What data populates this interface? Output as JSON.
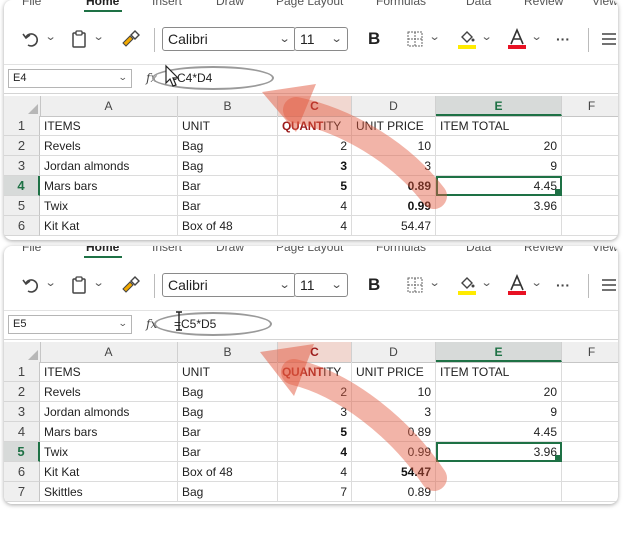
{
  "panels": [
    {
      "ribbon_tabs": [
        "File",
        "Home",
        "Insert",
        "Draw",
        "Page Layout",
        "Formulas",
        "Data",
        "Review",
        "View"
      ],
      "font_name": "Calibri",
      "font_size": "11",
      "bold_label": "B",
      "more_label": "···",
      "name_box": "E4",
      "fx_label": "fx",
      "formula": "=C4*D4",
      "columns": [
        "A",
        "B",
        "C",
        "D",
        "E",
        "F"
      ],
      "rows": [
        {
          "num": "1",
          "a": "ITEMS",
          "b": "UNIT",
          "c": "QUANTITY",
          "d": "UNIT PRICE",
          "e": "ITEM TOTAL"
        },
        {
          "num": "2",
          "a": "Revels",
          "b": "Bag",
          "c": "2",
          "d": "10",
          "e": "20"
        },
        {
          "num": "3",
          "a": "Jordan almonds",
          "b": "Bag",
          "c": "3",
          "d": "3",
          "e": "9"
        },
        {
          "num": "4",
          "a": "Mars bars",
          "b": "Bar",
          "c": "5",
          "d": "0.89",
          "e": "4.45"
        },
        {
          "num": "5",
          "a": "Twix",
          "b": "Bar",
          "c": "4",
          "d": "0.99",
          "e": "3.96"
        },
        {
          "num": "6",
          "a": "Kit Kat",
          "b": "Box of 48",
          "c": "4",
          "d": "54.47",
          "e": ""
        }
      ]
    },
    {
      "ribbon_tabs": [
        "File",
        "Home",
        "Insert",
        "Draw",
        "Page Layout",
        "Formulas",
        "Data",
        "Review",
        "View"
      ],
      "font_name": "Calibri",
      "font_size": "11",
      "bold_label": "B",
      "more_label": "···",
      "name_box": "E5",
      "fx_label": "fx",
      "formula": "=C5*D5",
      "columns": [
        "A",
        "B",
        "C",
        "D",
        "E",
        "F"
      ],
      "rows": [
        {
          "num": "1",
          "a": "ITEMS",
          "b": "UNIT",
          "c": "QUANTITY",
          "d": "UNIT PRICE",
          "e": "ITEM TOTAL"
        },
        {
          "num": "2",
          "a": "Revels",
          "b": "Bag",
          "c": "2",
          "d": "10",
          "e": "20"
        },
        {
          "num": "3",
          "a": "Jordan almonds",
          "b": "Bag",
          "c": "3",
          "d": "3",
          "e": "9"
        },
        {
          "num": "4",
          "a": "Mars bars",
          "b": "Bar",
          "c": "5",
          "d": "0.89",
          "e": "4.45"
        },
        {
          "num": "5",
          "a": "Twix",
          "b": "Bar",
          "c": "4",
          "d": "0.99",
          "e": "3.96"
        },
        {
          "num": "6",
          "a": "Kit Kat",
          "b": "Box of 48",
          "c": "4",
          "d": "54.47",
          "e": ""
        },
        {
          "num": "7",
          "a": "Skittles",
          "b": "Bag",
          "c": "7",
          "d": "0.89",
          "e": ""
        }
      ]
    }
  ],
  "colors": {
    "accent_green": "#1e7145",
    "reference_red": "#9b1b1b",
    "arrow_red": "#e2583e",
    "highlight_yellow": "#ffeb00",
    "font_red": "#e81123"
  },
  "icons": [
    "undo-icon",
    "clipboard-icon",
    "format-painter-icon",
    "borders-icon",
    "fill-color-icon",
    "font-color-icon",
    "more-options-icon",
    "align-icon"
  ]
}
